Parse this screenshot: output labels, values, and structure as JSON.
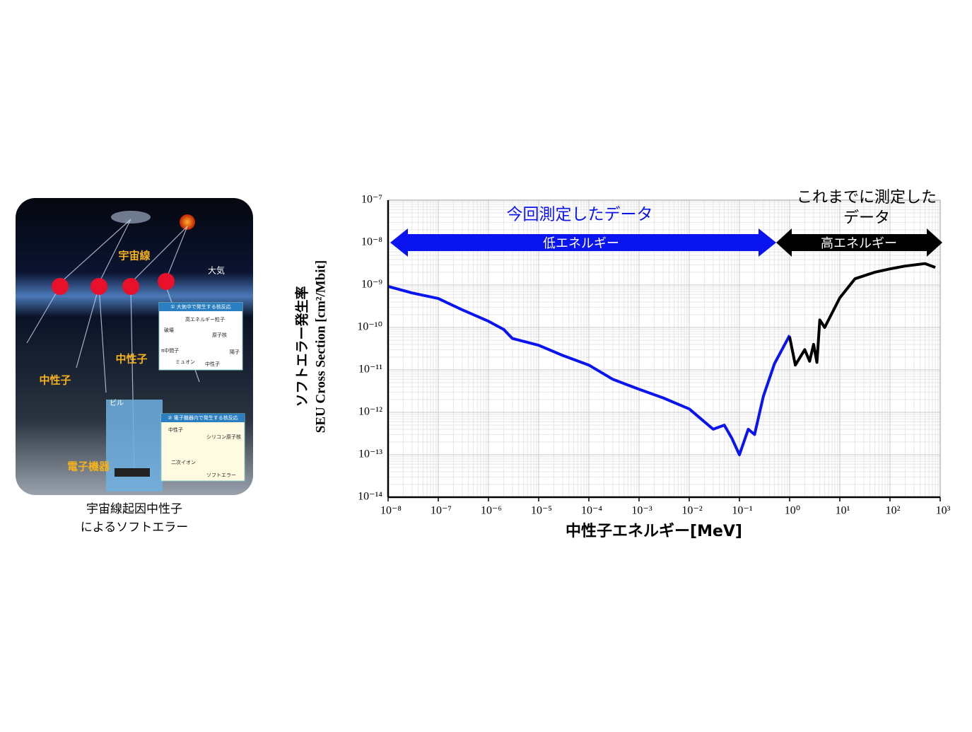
{
  "illustration": {
    "labels": {
      "cosmic_ray": "宇宙線",
      "atmosphere": "大気",
      "neutron_left": "中性子",
      "neutron_center": "中性子",
      "building": "ビル",
      "device": "電子機器"
    },
    "inset1": {
      "title": "① 大気中で発生する核反応",
      "items": [
        "高エネルギー粒子",
        "破壊",
        "原子核",
        "π中間子",
        "ミュオン",
        "中性子",
        "陽子"
      ]
    },
    "inset2": {
      "title": "② 電子機器内で発生する核反応",
      "items": [
        "中性子",
        "シリコン原子核",
        "二次イオン",
        "ソフトエラー"
      ]
    },
    "caption": [
      "宇宙線起因中性子",
      "によるソフトエラー"
    ]
  },
  "chart_data": {
    "type": "line",
    "y_label": [
      "ソフトエラー発生率",
      "SEU Cross Section [cm²/Mbit]"
    ],
    "x_label": "中性子エネルギー[MeV]",
    "annotations": {
      "low_title": "今回測定したデータ",
      "low_band": "低エネルギー",
      "high_title": [
        "これまでに測定した",
        "データ"
      ],
      "high_band": "高エネルギー"
    },
    "x_log": true,
    "y_log": true,
    "grid": true,
    "xlim": [
      1e-08,
      1000
    ],
    "ylim": [
      1e-14,
      1e-07
    ],
    "xticks": [
      {
        "value": 1e-08,
        "label": "10⁻⁸"
      },
      {
        "value": 1e-07,
        "label": "10⁻⁷"
      },
      {
        "value": 1e-06,
        "label": "10⁻⁶"
      },
      {
        "value": 1e-05,
        "label": "10⁻⁵"
      },
      {
        "value": 0.0001,
        "label": "10⁻⁴"
      },
      {
        "value": 0.001,
        "label": "10⁻³"
      },
      {
        "value": 0.01,
        "label": "10⁻²"
      },
      {
        "value": 0.1,
        "label": "10⁻¹"
      },
      {
        "value": 1,
        "label": "10⁰"
      },
      {
        "value": 10,
        "label": "10¹"
      },
      {
        "value": 100,
        "label": "10²"
      },
      {
        "value": 1000,
        "label": "10³"
      }
    ],
    "yticks": [
      {
        "value": 1e-14,
        "label": "10⁻¹⁴"
      },
      {
        "value": 1e-13,
        "label": "10⁻¹³"
      },
      {
        "value": 1e-12,
        "label": "10⁻¹²"
      },
      {
        "value": 1e-11,
        "label": "10⁻¹¹"
      },
      {
        "value": 1e-10,
        "label": "10⁻¹⁰"
      },
      {
        "value": 1e-09,
        "label": "10⁻⁹"
      },
      {
        "value": 1e-08,
        "label": "10⁻⁸"
      },
      {
        "value": 1e-07,
        "label": "10⁻⁷"
      }
    ],
    "series": [
      {
        "name": "低エネルギー",
        "color": "#0a14f0",
        "x": [
          1e-08,
          3e-08,
          1e-07,
          3e-07,
          1e-06,
          2e-06,
          3e-06,
          1e-05,
          3e-05,
          0.0001,
          0.0003,
          0.001,
          0.003,
          0.01,
          0.02,
          0.03,
          0.05,
          0.07,
          0.1,
          0.15,
          0.2,
          0.3,
          0.5,
          1
        ],
        "values": [
          9.3e-10,
          6.5e-10,
          4.8e-10,
          2.6e-10,
          1.4e-10,
          9e-11,
          5.5e-11,
          3.8e-11,
          2.2e-11,
          1.3e-11,
          6e-12,
          3.5e-12,
          2.2e-12,
          1.2e-12,
          6e-13,
          4e-13,
          5e-13,
          2.5e-13,
          1e-13,
          4e-13,
          3e-13,
          2.4e-12,
          1.4e-11,
          6.5e-11
        ]
      },
      {
        "name": "高エネルギー",
        "color": "#000000",
        "x": [
          1,
          1.3,
          2,
          2.5,
          3,
          3.5,
          4,
          5,
          10,
          20,
          50,
          100,
          200,
          500,
          800
        ],
        "values": [
          6e-11,
          1.3e-11,
          3e-11,
          1.6e-11,
          4e-11,
          1.5e-11,
          1.5e-10,
          1e-10,
          5e-10,
          1.4e-09,
          2e-09,
          2.4e-09,
          2.8e-09,
          3.2e-09,
          2.6e-09
        ]
      }
    ]
  }
}
